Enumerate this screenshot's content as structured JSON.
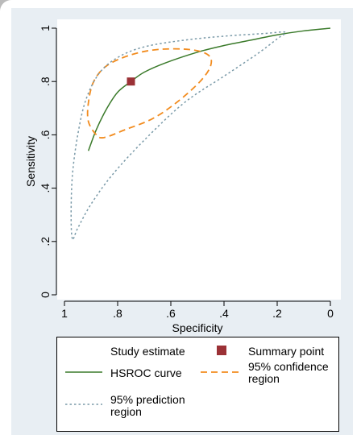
{
  "chart_data": {
    "type": "line",
    "xlabel": "Specificity",
    "ylabel": "Sensitivity",
    "x_reversed": true,
    "xlim": [
      1,
      0
    ],
    "ylim": [
      0,
      1
    ],
    "x_ticks": [
      1,
      0.8,
      0.6,
      0.4,
      0.2,
      0
    ],
    "x_tick_labels": [
      "1",
      ".8",
      ".6",
      ".4",
      ".2",
      "0"
    ],
    "y_ticks": [
      0,
      0.2,
      0.4,
      0.6,
      0.8,
      1
    ],
    "y_tick_labels": [
      "0",
      ".2",
      ".4",
      ".6",
      ".8",
      "1"
    ],
    "summary_point": {
      "specificity": 0.75,
      "sensitivity": 0.8
    },
    "series": [
      {
        "name": "HSROC curve",
        "color": "#3a7a2a",
        "style": "solid",
        "points": [
          [
            0.91,
            0.54
          ],
          [
            0.88,
            0.62
          ],
          [
            0.84,
            0.7
          ],
          [
            0.8,
            0.76
          ],
          [
            0.75,
            0.8
          ],
          [
            0.7,
            0.835
          ],
          [
            0.62,
            0.87
          ],
          [
            0.5,
            0.91
          ],
          [
            0.4,
            0.935
          ],
          [
            0.3,
            0.955
          ],
          [
            0.2,
            0.975
          ],
          [
            0.1,
            0.99
          ],
          [
            0.0,
            1.0
          ]
        ]
      },
      {
        "name": "95% confidence region",
        "color": "#f28c1f",
        "style": "dashed",
        "points": [
          [
            0.88,
            0.6
          ],
          [
            0.91,
            0.65
          ],
          [
            0.91,
            0.72
          ],
          [
            0.89,
            0.8
          ],
          [
            0.84,
            0.86
          ],
          [
            0.75,
            0.9
          ],
          [
            0.65,
            0.92
          ],
          [
            0.53,
            0.92
          ],
          [
            0.46,
            0.9
          ],
          [
            0.45,
            0.86
          ],
          [
            0.49,
            0.8
          ],
          [
            0.58,
            0.72
          ],
          [
            0.67,
            0.66
          ],
          [
            0.77,
            0.62
          ],
          [
            0.85,
            0.59
          ],
          [
            0.88,
            0.6
          ]
        ]
      },
      {
        "name": "95% prediction region",
        "color": "#7a9aa8",
        "style": "dotted",
        "points": [
          [
            0.97,
            0.21
          ],
          [
            0.975,
            0.3
          ],
          [
            0.97,
            0.45
          ],
          [
            0.95,
            0.6
          ],
          [
            0.92,
            0.73
          ],
          [
            0.87,
            0.83
          ],
          [
            0.8,
            0.89
          ],
          [
            0.7,
            0.93
          ],
          [
            0.55,
            0.955
          ],
          [
            0.4,
            0.97
          ],
          [
            0.25,
            0.98
          ],
          [
            0.17,
            0.985
          ],
          [
            0.2,
            0.96
          ],
          [
            0.28,
            0.9
          ],
          [
            0.4,
            0.82
          ],
          [
            0.55,
            0.72
          ],
          [
            0.7,
            0.58
          ],
          [
            0.82,
            0.45
          ],
          [
            0.9,
            0.34
          ],
          [
            0.95,
            0.25
          ],
          [
            0.97,
            0.21
          ]
        ]
      }
    ],
    "legend": {
      "position": "bottom",
      "entries": [
        {
          "label": "Study estimate",
          "marker": "none"
        },
        {
          "label": "Summary point",
          "marker": "square"
        },
        {
          "label": "HSROC curve",
          "marker": "solid-line"
        },
        {
          "label": "95% confidence\nregion",
          "marker": "dashed-line"
        },
        {
          "label": "95% prediction\nregion",
          "marker": "dotted-line"
        }
      ]
    },
    "colors": {
      "summary_point": "#9b3136",
      "background": "#e8eef3"
    }
  }
}
